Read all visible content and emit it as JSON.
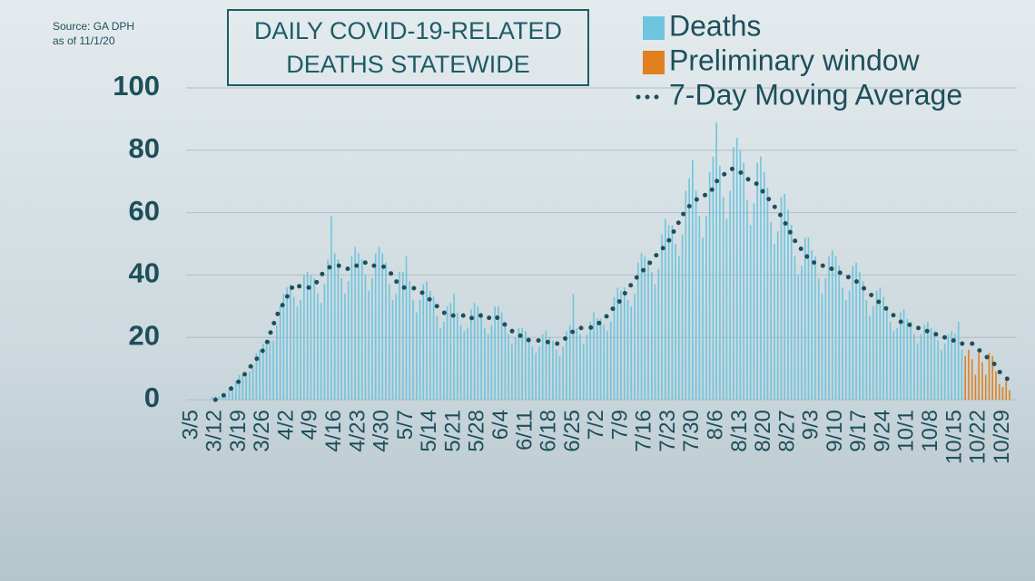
{
  "chart_data": {
    "type": "bar",
    "title": "DAILY COVID-19-RELATED DEATHS STATEWIDE",
    "source": "Source: GA DPH",
    "date_note": "as of 11/1/20",
    "ylim": [
      0,
      100
    ],
    "yticks": [
      0,
      20,
      40,
      60,
      80,
      100
    ],
    "grid": true,
    "legend": "top-right",
    "categories": [
      "3/5",
      null,
      null,
      null,
      null,
      null,
      null,
      "3/12",
      null,
      null,
      null,
      null,
      null,
      null,
      "3/19",
      null,
      null,
      null,
      null,
      null,
      null,
      "3/26",
      null,
      null,
      null,
      null,
      null,
      null,
      "4/2",
      null,
      null,
      null,
      null,
      null,
      null,
      "4/9",
      null,
      null,
      null,
      null,
      null,
      null,
      "4/16",
      null,
      null,
      null,
      null,
      null,
      null,
      "4/23",
      null,
      null,
      null,
      null,
      null,
      null,
      "4/30",
      null,
      null,
      null,
      null,
      null,
      null,
      "5/7",
      null,
      null,
      null,
      null,
      null,
      null,
      "5/14",
      null,
      null,
      null,
      null,
      null,
      null,
      "5/21",
      null,
      null,
      null,
      null,
      null,
      null,
      "5/28",
      null,
      null,
      null,
      null,
      null,
      null,
      "6/4",
      null,
      null,
      null,
      null,
      null,
      null,
      "6/11",
      null,
      null,
      null,
      null,
      null,
      null,
      "6/18",
      null,
      null,
      null,
      null,
      null,
      null,
      "6/25",
      null,
      null,
      null,
      null,
      null,
      null,
      "7/2",
      null,
      null,
      null,
      null,
      null,
      null,
      "7/9",
      null,
      null,
      null,
      null,
      null,
      null,
      "7/16",
      null,
      null,
      null,
      null,
      null,
      null,
      "7/23",
      null,
      null,
      null,
      null,
      null,
      null,
      "7/30",
      null,
      null,
      null,
      null,
      null,
      null,
      "8/6",
      null,
      null,
      null,
      null,
      null,
      null,
      "8/13",
      null,
      null,
      null,
      null,
      null,
      null,
      "8/20",
      null,
      null,
      null,
      null,
      null,
      null,
      "8/27",
      null,
      null,
      null,
      null,
      null,
      null,
      "9/3",
      null,
      null,
      null,
      null,
      null,
      null,
      "9/10",
      null,
      null,
      null,
      null,
      null,
      null,
      "9/17",
      null,
      null,
      null,
      null,
      null,
      null,
      "9/24",
      null,
      null,
      null,
      null,
      null,
      null,
      "10/1",
      null,
      null,
      null,
      null,
      null,
      null,
      "10/8",
      null,
      null,
      null,
      null,
      null,
      null,
      "10/15",
      null,
      null,
      null,
      null,
      null,
      null,
      "10/22",
      null,
      null,
      null,
      null,
      null,
      null,
      "10/29",
      null,
      null
    ],
    "series": [
      {
        "name": "Deaths",
        "type": "bar",
        "color": "#6fc4de",
        "values": [
          0,
          0,
          0,
          0,
          0,
          0,
          1,
          1,
          1,
          2,
          1,
          3,
          4,
          6,
          8,
          8,
          8,
          9,
          11,
          15,
          16,
          18,
          19,
          19,
          19,
          24,
          30,
          34,
          36,
          37,
          33,
          30,
          32,
          40,
          41,
          40,
          39,
          34,
          31,
          37,
          45,
          59,
          47,
          45,
          39,
          34,
          38,
          46,
          49,
          47,
          45,
          40,
          35,
          39,
          47,
          49,
          47,
          44,
          37,
          32,
          34,
          41,
          41,
          46,
          38,
          32,
          28,
          32,
          37,
          38,
          35,
          33,
          27,
          23,
          25,
          30,
          31,
          34,
          28,
          24,
          22,
          23,
          29,
          31,
          30,
          28,
          23,
          21,
          24,
          30,
          30,
          28,
          25,
          21,
          18,
          20,
          23,
          23,
          22,
          20,
          17,
          15,
          17,
          21,
          22,
          20,
          19,
          16,
          14,
          17,
          22,
          24,
          34,
          23,
          21,
          18,
          21,
          25,
          28,
          26,
          26,
          24,
          22,
          25,
          33,
          36,
          35,
          36,
          32,
          30,
          34,
          44,
          47,
          46,
          45,
          41,
          37,
          42,
          53,
          58,
          56,
          56,
          50,
          46,
          53,
          67,
          71,
          77,
          67,
          59,
          52,
          59,
          73,
          78,
          89,
          75,
          65,
          58,
          67,
          81,
          84,
          80,
          76,
          64,
          56,
          63,
          76,
          78,
          73,
          68,
          57,
          50,
          54,
          65,
          66,
          61,
          56,
          46,
          40,
          43,
          52,
          52,
          48,
          46,
          39,
          34,
          39,
          46,
          48,
          46,
          43,
          36,
          32,
          35,
          43,
          44,
          41,
          38,
          32,
          27,
          30,
          35,
          36,
          33,
          30,
          25,
          22,
          23,
          28,
          29,
          26,
          25,
          21,
          18,
          21,
          24,
          25,
          23,
          22,
          19,
          16,
          18,
          21,
          22,
          21,
          25,
          16,
          null,
          null,
          null,
          null,
          null,
          null,
          null,
          null,
          null,
          null,
          null,
          null,
          null,
          null
        ]
      },
      {
        "name": "Preliminary window",
        "type": "bar",
        "color": "#e0801e",
        "values": [
          null,
          null,
          null,
          null,
          null,
          null,
          null,
          null,
          null,
          null,
          null,
          null,
          null,
          null,
          null,
          null,
          null,
          null,
          null,
          null,
          null,
          null,
          null,
          null,
          null,
          null,
          null,
          null,
          null,
          null,
          null,
          null,
          null,
          null,
          null,
          null,
          null,
          null,
          null,
          null,
          null,
          null,
          null,
          null,
          null,
          null,
          null,
          null,
          null,
          null,
          null,
          null,
          null,
          null,
          null,
          null,
          null,
          null,
          null,
          null,
          null,
          null,
          null,
          null,
          null,
          null,
          null,
          null,
          null,
          null,
          null,
          null,
          null,
          null,
          null,
          null,
          null,
          null,
          null,
          null,
          null,
          null,
          null,
          null,
          null,
          null,
          null,
          null,
          null,
          null,
          null,
          null,
          null,
          null,
          null,
          null,
          null,
          null,
          null,
          null,
          null,
          null,
          null,
          null,
          null,
          null,
          null,
          null,
          null,
          null,
          null,
          null,
          null,
          null,
          null,
          null,
          null,
          null,
          null,
          null,
          null,
          null,
          null,
          null,
          null,
          null,
          null,
          null,
          null,
          null,
          null,
          null,
          null,
          null,
          null,
          null,
          null,
          null,
          null,
          null,
          null,
          null,
          null,
          null,
          null,
          null,
          null,
          null,
          null,
          null,
          null,
          null,
          null,
          null,
          null,
          null,
          null,
          null,
          null,
          null,
          null,
          null,
          null,
          null,
          null,
          null,
          null,
          null,
          null,
          null,
          null,
          null,
          null,
          null,
          null,
          null,
          null,
          null,
          null,
          null,
          null,
          null,
          null,
          null,
          null,
          null,
          null,
          null,
          null,
          null,
          null,
          null,
          null,
          null,
          null,
          null,
          null,
          null,
          null,
          null,
          null,
          null,
          null,
          null,
          null,
          null,
          null,
          null,
          null,
          null,
          null,
          null,
          null,
          null,
          null,
          null,
          null,
          null,
          null,
          null,
          null,
          null,
          null,
          null,
          null,
          null,
          null,
          14,
          16,
          13,
          8,
          15,
          12,
          8,
          15,
          14,
          9,
          5,
          4,
          6,
          3
        ]
      },
      {
        "name": "7-Day Moving Average",
        "type": "line",
        "color": "#1d4f5b",
        "values": [
          null,
          null,
          null,
          null,
          null,
          null,
          null,
          0,
          1,
          1,
          2,
          3,
          4,
          5,
          6,
          7,
          9,
          10,
          12,
          13,
          14,
          16,
          18,
          21,
          24,
          27,
          29,
          31,
          33,
          35,
          37,
          37,
          36,
          36,
          36,
          36,
          37,
          38,
          40,
          41,
          42,
          43,
          43,
          43,
          43,
          42,
          42,
          42,
          43,
          43,
          43,
          44,
          44,
          43,
          43,
          43,
          43,
          42,
          41,
          40,
          38,
          37,
          36,
          36,
          36,
          36,
          35,
          35,
          34,
          33,
          32,
          31,
          30,
          29,
          28,
          27,
          27,
          27,
          27,
          27,
          27,
          26,
          26,
          27,
          27,
          27,
          26,
          26,
          27,
          27,
          26,
          25,
          24,
          23,
          22,
          22,
          21,
          20,
          20,
          19,
          19,
          19,
          19,
          19,
          19,
          18,
          18,
          18,
          18,
          19,
          20,
          21,
          22,
          22,
          23,
          23,
          23,
          23,
          24,
          24,
          25,
          26,
          27,
          28,
          30,
          31,
          32,
          34,
          35,
          37,
          38,
          40,
          41,
          42,
          43,
          45,
          46,
          47,
          48,
          50,
          51,
          53,
          55,
          57,
          59,
          61,
          62,
          63,
          64,
          65,
          65,
          66,
          66,
          68,
          70,
          71,
          72,
          73,
          74,
          74,
          74,
          73,
          72,
          71,
          70,
          70,
          69,
          68,
          66,
          65,
          63,
          62,
          60,
          59,
          57,
          55,
          53,
          51,
          50,
          48,
          47,
          45,
          44,
          44,
          43,
          43,
          43,
          42,
          42,
          42,
          41,
          40,
          40,
          39,
          39,
          38,
          37,
          36,
          35,
          34,
          33,
          32,
          31,
          30,
          29,
          28,
          27,
          26,
          25,
          25,
          24,
          24,
          23,
          23,
          23,
          22,
          22,
          21,
          21,
          21,
          20,
          20,
          19,
          19,
          19,
          19,
          18,
          18,
          18,
          18,
          17,
          16,
          15,
          14,
          13,
          12,
          11,
          9,
          8,
          7,
          6
        ]
      }
    ]
  }
}
